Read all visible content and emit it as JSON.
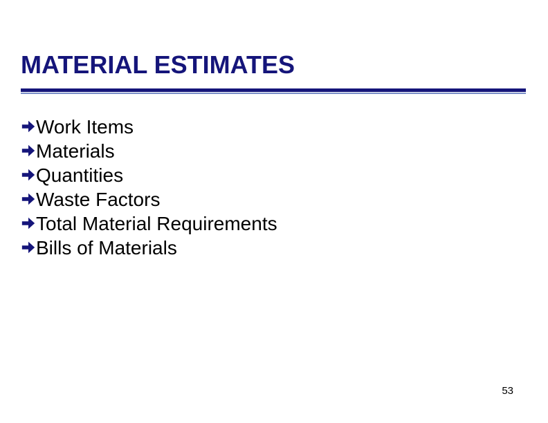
{
  "slide": {
    "title": "MATERIAL ESTIMATES",
    "title_color": "#15157a",
    "title_fontsize": 36,
    "divider_thick_color": "#15157a",
    "divider_thin_color": "#7a8fc8",
    "bullets": {
      "items": [
        "Work Items",
        "Materials",
        "Quantities",
        "Waste Factors",
        "Total Material Requirements",
        "Bills of Materials"
      ],
      "text_color": "#000000",
      "fontsize": 28,
      "arrow_color": "#15157a",
      "arrow_size": 22
    },
    "page_number": "53",
    "page_number_fontsize": 15,
    "page_number_color": "#000000",
    "background_color": "#ffffff"
  }
}
